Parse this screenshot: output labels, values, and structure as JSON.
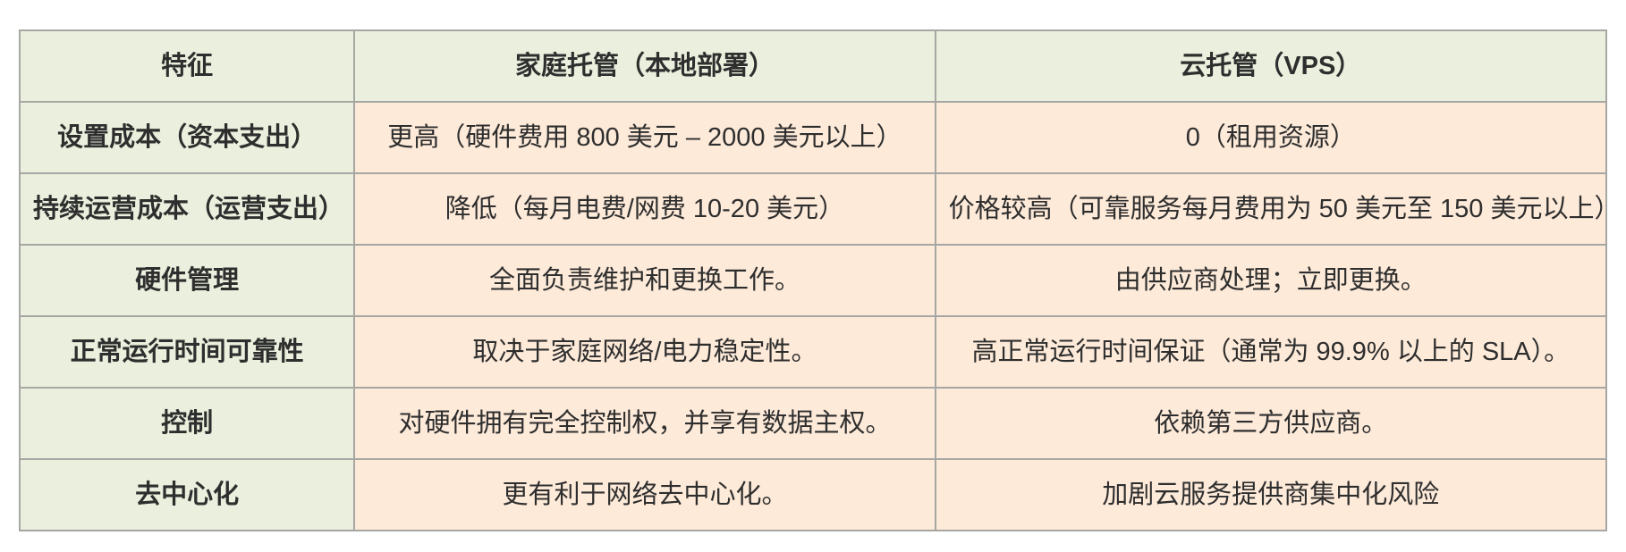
{
  "page": {
    "background_color": "#ffffff"
  },
  "table": {
    "style": {
      "border_color": "#a6a7a3",
      "header_bg": "#eaf0dd",
      "feature_column_bg": "#eaf0dd",
      "value_cell_bg": "#fdead9",
      "text_color": "#2e2e2e"
    },
    "headers": [
      "特征",
      "家庭托管（本地部署）",
      "云托管（VPS）"
    ],
    "rows": [
      {
        "feature": "设置成本（资本支出）",
        "home": "更高（硬件费用 800 美元 – 2000 美元以上）",
        "cloud": "0（租用资源）"
      },
      {
        "feature": "持续运营成本（运营支出）",
        "home": "降低（每月电费/网费 10-20 美元）",
        "cloud": "价格较高（可靠服务每月费用为 50 美元至 150 美元以上）"
      },
      {
        "feature": "硬件管理",
        "home": "全面负责维护和更换工作。",
        "cloud": "由供应商处理；立即更换。"
      },
      {
        "feature": "正常运行时间可靠性",
        "home": "取决于家庭网络/电力稳定性。",
        "cloud": "高正常运行时间保证（通常为 99.9% 以上的 SLA）。"
      },
      {
        "feature": "控制",
        "home": "对硬件拥有完全控制权，并享有数据主权。",
        "cloud": "依赖第三方供应商。"
      },
      {
        "feature": "去中心化",
        "home": "更有利于网络去中心化。",
        "cloud": "加剧云服务提供商集中化风险"
      }
    ]
  }
}
